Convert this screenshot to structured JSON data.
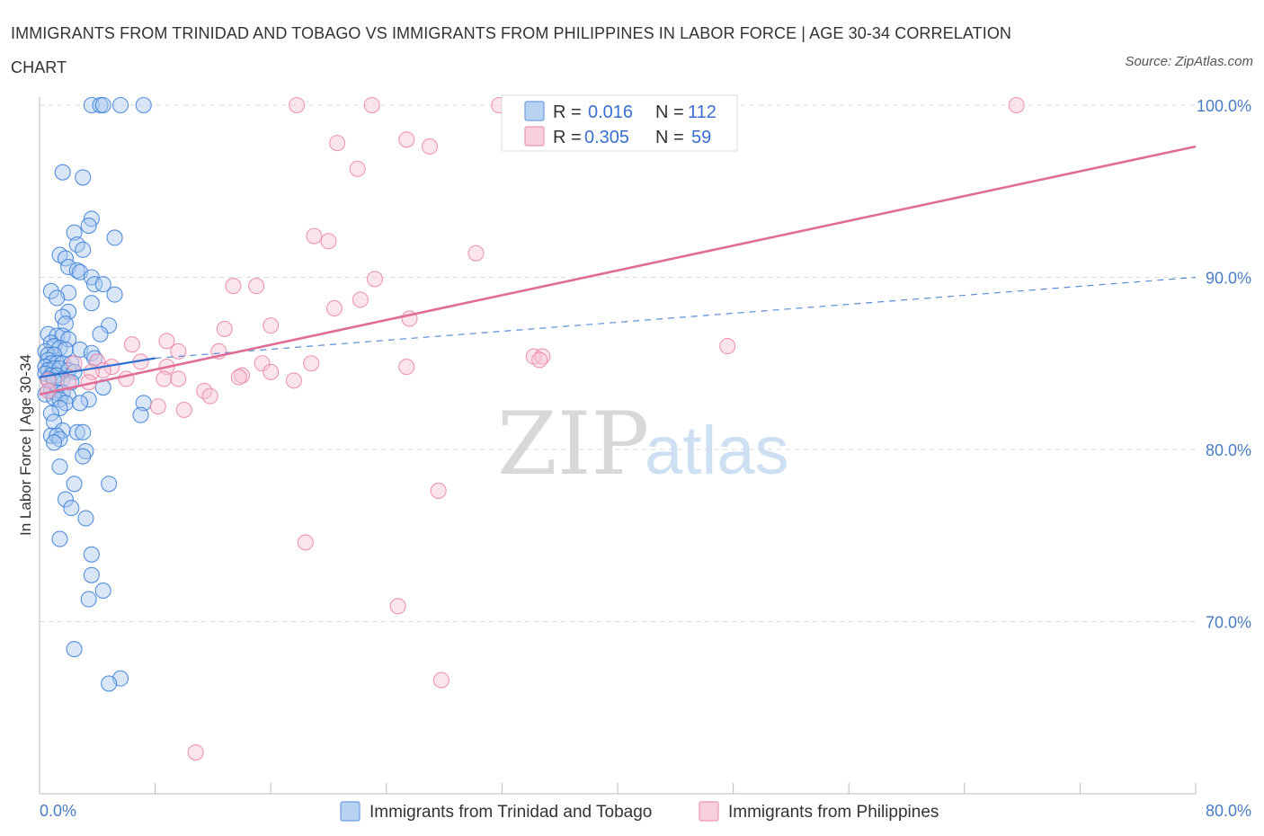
{
  "title": "IMMIGRANTS FROM TRINIDAD AND TOBAGO VS IMMIGRANTS FROM PHILIPPINES IN LABOR FORCE | AGE 30-34 CORRELATION CHART",
  "source": "Source: ZipAtlas.com",
  "watermark": {
    "zip": "ZIP",
    "atlas": "atlas"
  },
  "legend": {
    "r_label": "R =",
    "n_label": "N =",
    "entries": [
      {
        "r": "0.016",
        "n": "112"
      },
      {
        "r": "0.305",
        "n": "59"
      }
    ]
  },
  "colors": {
    "series1_fill": "#a9c8ee",
    "series1_stroke": "#3b7fd8",
    "series1_line": "#2f6fd0",
    "series2_fill": "#f6c3d3",
    "series2_stroke": "#e87fa2",
    "series2_line": "#e06d98",
    "grid": "#d9d9d9",
    "tick_text": "#4a7cc4"
  },
  "chart_data": {
    "type": "scatter",
    "title": "IMMIGRANTS FROM TRINIDAD AND TOBAGO VS IMMIGRANTS FROM PHILIPPINES IN LABOR FORCE | AGE 30-34 CORRELATION CHART",
    "xlabel": "",
    "ylabel": "In Labor Force | Age 30-34",
    "xlim": [
      0,
      80
    ],
    "ylim": [
      60,
      100
    ],
    "x_tick_labels": [
      "0.0%",
      "80.0%"
    ],
    "y_ticks": [
      70,
      80,
      90,
      100
    ],
    "y_tick_labels": [
      "70.0%",
      "80.0%",
      "90.0%",
      "100.0%"
    ],
    "grid": true,
    "legend_position": "top-center",
    "series": [
      {
        "name": "Immigrants from Trinidad and Tobago",
        "r": 0.016,
        "n": 112,
        "trend_solid": [
          [
            0,
            84.2
          ],
          [
            8,
            85.3
          ]
        ],
        "trend_dashed": [
          [
            8,
            85.3
          ],
          [
            80,
            90.0
          ]
        ],
        "points": [
          [
            3.6,
            100
          ],
          [
            4.2,
            100
          ],
          [
            4.4,
            100
          ],
          [
            5.6,
            100
          ],
          [
            7.2,
            100
          ],
          [
            1.6,
            96.1
          ],
          [
            3.0,
            95.8
          ],
          [
            3.6,
            93.4
          ],
          [
            3.4,
            93.0
          ],
          [
            2.4,
            92.6
          ],
          [
            5.2,
            92.3
          ],
          [
            2.6,
            91.9
          ],
          [
            3.0,
            91.6
          ],
          [
            1.4,
            91.3
          ],
          [
            1.8,
            91.1
          ],
          [
            2.0,
            90.6
          ],
          [
            2.6,
            90.4
          ],
          [
            2.8,
            90.3
          ],
          [
            3.6,
            90.0
          ],
          [
            3.8,
            89.6
          ],
          [
            4.4,
            89.6
          ],
          [
            0.8,
            89.2
          ],
          [
            2.0,
            89.1
          ],
          [
            5.2,
            89.0
          ],
          [
            1.2,
            88.8
          ],
          [
            3.6,
            88.5
          ],
          [
            2.0,
            88.0
          ],
          [
            1.6,
            87.7
          ],
          [
            1.8,
            87.3
          ],
          [
            4.8,
            87.2
          ],
          [
            0.6,
            86.7
          ],
          [
            1.2,
            86.6
          ],
          [
            1.6,
            86.6
          ],
          [
            4.2,
            86.7
          ],
          [
            2.0,
            86.4
          ],
          [
            0.8,
            86.2
          ],
          [
            1.0,
            86.0
          ],
          [
            1.4,
            85.9
          ],
          [
            1.8,
            85.8
          ],
          [
            2.8,
            85.8
          ],
          [
            0.4,
            85.7
          ],
          [
            0.6,
            85.5
          ],
          [
            1.0,
            85.5
          ],
          [
            3.6,
            85.6
          ],
          [
            3.8,
            85.3
          ],
          [
            0.6,
            85.2
          ],
          [
            0.8,
            85.0
          ],
          [
            1.2,
            85.0
          ],
          [
            1.6,
            85.0
          ],
          [
            2.2,
            85.0
          ],
          [
            0.4,
            84.8
          ],
          [
            0.6,
            84.6
          ],
          [
            1.0,
            84.7
          ],
          [
            1.4,
            84.7
          ],
          [
            2.0,
            84.6
          ],
          [
            2.4,
            84.5
          ],
          [
            0.4,
            84.4
          ],
          [
            0.8,
            84.3
          ],
          [
            1.2,
            84.3
          ],
          [
            1.6,
            84.1
          ],
          [
            0.6,
            84.1
          ],
          [
            1.0,
            84.0
          ],
          [
            2.2,
            83.9
          ],
          [
            4.4,
            83.6
          ],
          [
            0.8,
            83.4
          ],
          [
            1.2,
            83.3
          ],
          [
            1.6,
            83.3
          ],
          [
            2.0,
            83.1
          ],
          [
            0.4,
            83.2
          ],
          [
            1.0,
            83.0
          ],
          [
            1.4,
            82.9
          ],
          [
            3.4,
            82.9
          ],
          [
            1.8,
            82.7
          ],
          [
            2.8,
            82.7
          ],
          [
            7.2,
            82.7
          ],
          [
            1.4,
            82.4
          ],
          [
            0.8,
            82.1
          ],
          [
            7.0,
            82.0
          ],
          [
            1.0,
            81.6
          ],
          [
            1.6,
            81.1
          ],
          [
            2.6,
            81.0
          ],
          [
            3.0,
            81.0
          ],
          [
            0.8,
            80.8
          ],
          [
            1.2,
            80.8
          ],
          [
            1.4,
            80.6
          ],
          [
            1.0,
            80.4
          ],
          [
            3.2,
            79.9
          ],
          [
            3.0,
            79.6
          ],
          [
            1.4,
            79.0
          ],
          [
            2.4,
            78.0
          ],
          [
            4.8,
            78.0
          ],
          [
            1.8,
            77.1
          ],
          [
            2.2,
            76.6
          ],
          [
            3.2,
            76.0
          ],
          [
            1.4,
            74.8
          ],
          [
            3.6,
            73.9
          ],
          [
            3.6,
            72.7
          ],
          [
            4.4,
            71.8
          ],
          [
            3.4,
            71.3
          ],
          [
            2.4,
            68.4
          ],
          [
            5.6,
            66.7
          ],
          [
            4.8,
            66.4
          ]
        ]
      },
      {
        "name": "Immigrants from Philippines",
        "r": 0.305,
        "n": 59,
        "trend_solid": [
          [
            0,
            83.2
          ],
          [
            80,
            97.6
          ]
        ],
        "points": [
          [
            17.8,
            100
          ],
          [
            23.0,
            100
          ],
          [
            31.8,
            100
          ],
          [
            67.6,
            100
          ],
          [
            20.6,
            97.8
          ],
          [
            25.4,
            98.0
          ],
          [
            27.0,
            97.6
          ],
          [
            22.0,
            96.3
          ],
          [
            19.0,
            92.4
          ],
          [
            20.0,
            92.1
          ],
          [
            30.2,
            91.4
          ],
          [
            23.2,
            89.9
          ],
          [
            13.4,
            89.5
          ],
          [
            15.0,
            89.5
          ],
          [
            22.2,
            88.7
          ],
          [
            20.4,
            88.2
          ],
          [
            25.6,
            87.6
          ],
          [
            16.0,
            87.2
          ],
          [
            12.8,
            87.0
          ],
          [
            8.8,
            86.3
          ],
          [
            6.4,
            86.1
          ],
          [
            47.6,
            86.0
          ],
          [
            9.6,
            85.7
          ],
          [
            12.4,
            85.7
          ],
          [
            34.2,
            85.4
          ],
          [
            34.8,
            85.4
          ],
          [
            34.6,
            85.2
          ],
          [
            18.8,
            85.0
          ],
          [
            15.4,
            85.0
          ],
          [
            7.0,
            85.1
          ],
          [
            4.0,
            85.1
          ],
          [
            2.4,
            85.0
          ],
          [
            25.4,
            84.8
          ],
          [
            5.0,
            84.8
          ],
          [
            8.8,
            84.8
          ],
          [
            4.4,
            84.6
          ],
          [
            3.6,
            84.5
          ],
          [
            16.0,
            84.5
          ],
          [
            14.0,
            84.3
          ],
          [
            13.8,
            84.2
          ],
          [
            6.0,
            84.1
          ],
          [
            0.6,
            84.0
          ],
          [
            8.6,
            84.1
          ],
          [
            2.0,
            83.9
          ],
          [
            3.4,
            83.9
          ],
          [
            9.6,
            84.1
          ],
          [
            17.6,
            84.0
          ],
          [
            11.4,
            83.4
          ],
          [
            11.8,
            83.1
          ],
          [
            0.6,
            83.4
          ],
          [
            8.2,
            82.5
          ],
          [
            10.0,
            82.3
          ],
          [
            27.6,
            77.6
          ],
          [
            18.4,
            74.6
          ],
          [
            24.8,
            70.9
          ],
          [
            27.8,
            66.6
          ],
          [
            10.8,
            62.4
          ]
        ]
      }
    ]
  },
  "bottom_legend": [
    {
      "label": "Immigrants from Trinidad and Tobago"
    },
    {
      "label": "Immigrants from Philippines"
    }
  ]
}
